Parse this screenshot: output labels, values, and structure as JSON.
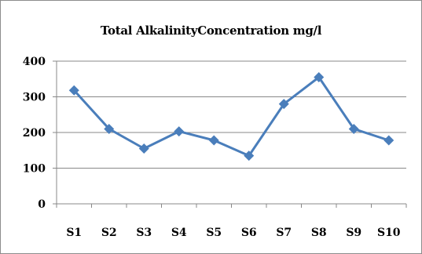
{
  "chart_data": {
    "type": "line",
    "title": "Total AlkalinityConcentration mg/l",
    "xlabel": "",
    "ylabel": "",
    "categories": [
      "S1",
      "S2",
      "S3",
      "S4",
      "S5",
      "S6",
      "S7",
      "S8",
      "S9",
      "S10"
    ],
    "series": [
      {
        "values": [
          318,
          210,
          155,
          203,
          178,
          135,
          280,
          355,
          210,
          178
        ]
      }
    ],
    "ylim": [
      0,
      400
    ],
    "yticks": [
      0,
      100,
      200,
      300,
      400
    ],
    "grid": true,
    "legend": "none",
    "colors": {
      "line": "#4a7ebb",
      "grid": "#888888",
      "axis": "#888888"
    }
  }
}
